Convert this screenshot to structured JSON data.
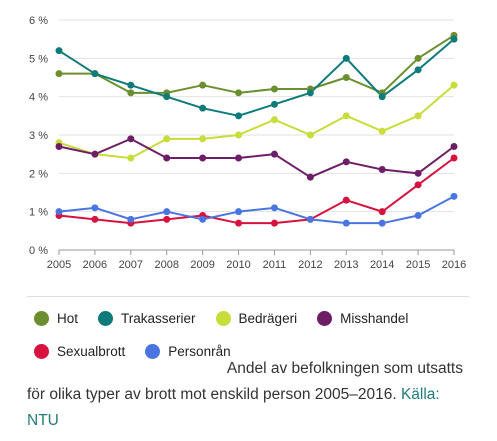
{
  "chart_data": {
    "type": "line",
    "x": [
      2005,
      2006,
      2007,
      2008,
      2009,
      2010,
      2011,
      2012,
      2013,
      2014,
      2015,
      2016
    ],
    "ylim": [
      0,
      6
    ],
    "yticks": [
      "0 %",
      "1 %",
      "2 %",
      "3 %",
      "4 %",
      "5 %",
      "6 %"
    ],
    "grid": true,
    "legend_position": "bottom",
    "series": [
      {
        "name": "Hot",
        "color": "#6b8e2f",
        "values": [
          4.6,
          4.6,
          4.1,
          4.1,
          4.3,
          4.1,
          4.2,
          4.2,
          4.5,
          4.1,
          5.0,
          5.6
        ]
      },
      {
        "name": "Trakasserier",
        "color": "#0e7b7b",
        "values": [
          5.2,
          4.6,
          4.3,
          4.0,
          3.7,
          3.5,
          3.8,
          4.1,
          5.0,
          4.0,
          4.7,
          5.5
        ]
      },
      {
        "name": "Bedrägeri",
        "color": "#c8dc3a",
        "values": [
          2.8,
          2.5,
          2.4,
          2.9,
          2.9,
          3.0,
          3.4,
          3.0,
          3.5,
          3.1,
          3.5,
          4.3
        ]
      },
      {
        "name": "Misshandel",
        "color": "#6e1e66",
        "values": [
          2.7,
          2.5,
          2.9,
          2.4,
          2.4,
          2.4,
          2.5,
          1.9,
          2.3,
          2.1,
          2.0,
          2.7
        ]
      },
      {
        "name": "Sexualbrott",
        "color": "#d8123f",
        "values": [
          0.9,
          0.8,
          0.7,
          0.8,
          0.9,
          0.7,
          0.7,
          0.8,
          1.3,
          1.0,
          1.7,
          2.4
        ]
      },
      {
        "name": "Personrån",
        "color": "#4a74e0",
        "values": [
          1.0,
          1.1,
          0.8,
          1.0,
          0.8,
          1.0,
          1.1,
          0.8,
          0.7,
          0.7,
          0.9,
          1.4
        ]
      }
    ]
  },
  "caption": {
    "line1": "Andel av befolkningen som utsatts",
    "line2": "för olika typer av brott mot enskild person 2005–2016.",
    "source_link": "Källa:",
    "source_name": "NTU"
  }
}
